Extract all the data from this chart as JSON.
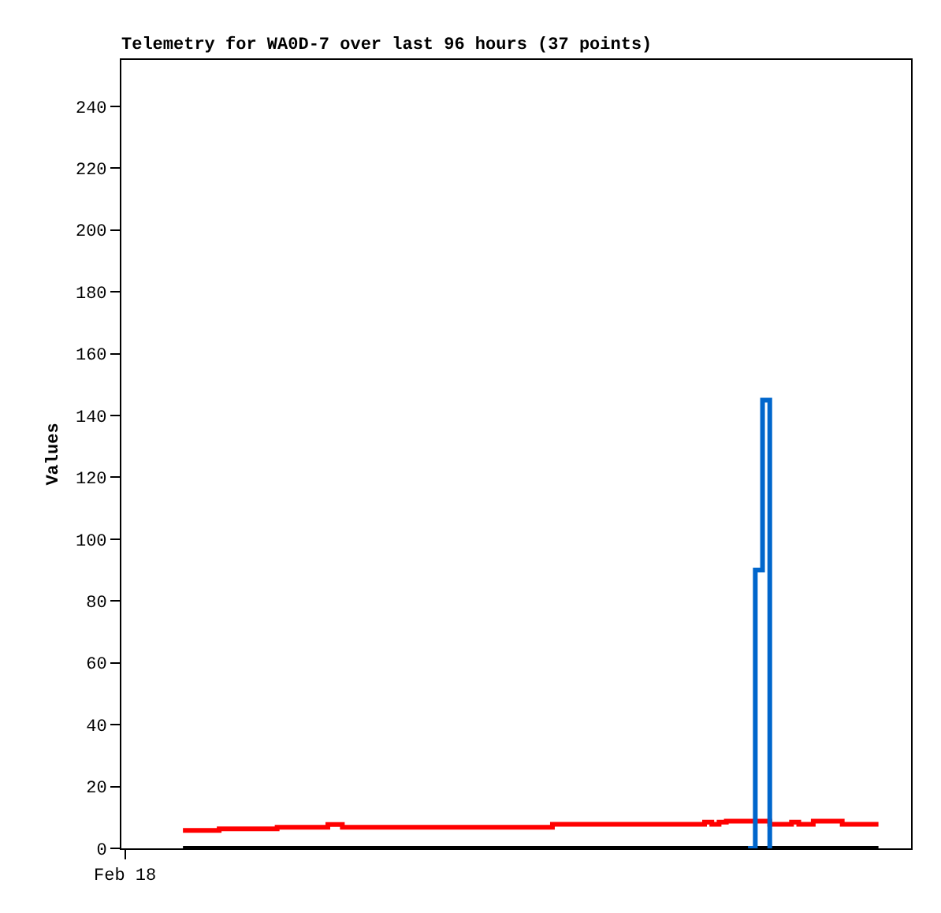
{
  "chart_data": {
    "type": "step",
    "title": "Telemetry for WA0D-7 over last 96 hours (37 points)",
    "ylabel": "Values",
    "categories": [
      "Feb 18",
      null,
      null,
      null,
      null,
      null,
      null,
      null,
      null,
      null,
      null,
      null,
      null,
      null,
      null,
      null,
      null,
      null,
      null,
      null,
      null,
      null,
      null,
      null,
      null,
      null,
      null,
      null,
      null,
      null,
      null,
      null,
      null,
      null,
      null,
      null,
      null,
      null,
      null,
      null,
      null,
      null,
      null,
      null,
      null,
      null,
      null,
      null,
      null,
      null,
      null,
      null,
      null,
      null,
      null,
      null,
      null,
      null,
      null,
      null,
      null,
      null,
      null,
      null,
      null,
      null,
      null,
      null,
      null,
      null,
      null,
      null,
      null,
      null,
      null,
      null,
      null,
      null,
      null,
      null,
      null,
      null,
      null,
      null,
      null,
      null,
      null,
      null,
      null,
      null,
      null,
      null,
      null,
      null,
      null,
      null,
      null,
      null,
      null,
      null,
      null,
      null,
      null,
      null,
      null,
      null,
      null,
      null,
      null
    ],
    "ylim": [
      0,
      255
    ],
    "yticks": [
      0,
      20,
      40,
      60,
      80,
      100,
      120,
      140,
      160,
      180,
      200,
      220,
      240
    ],
    "series": [
      {
        "color": "#000000",
        "values": [
          null,
          null,
          null,
          null,
          null,
          null,
          null,
          null,
          0,
          0,
          0,
          0,
          0,
          0,
          0,
          0,
          0,
          0,
          0,
          0,
          0,
          0,
          0,
          0,
          0,
          0,
          0,
          0,
          0,
          0,
          0,
          0,
          0,
          0,
          0,
          0,
          0,
          0,
          0,
          0,
          0,
          0,
          0,
          0,
          0,
          0,
          0,
          0,
          0,
          0,
          0,
          0,
          0,
          0,
          0,
          0,
          0,
          0,
          0,
          0,
          0,
          0,
          0,
          0,
          0,
          0,
          0,
          0,
          0,
          0,
          0,
          0,
          0,
          0,
          0,
          0,
          0,
          0,
          0,
          0,
          0,
          0,
          0,
          0,
          0,
          0,
          0,
          0,
          0,
          0,
          0,
          0,
          0,
          0,
          0,
          0,
          0,
          0,
          0,
          0,
          0,
          0,
          0,
          0,
          0,
          null,
          null,
          null,
          null
        ]
      },
      {
        "color": "#ff0000",
        "values": [
          null,
          null,
          null,
          null,
          null,
          null,
          null,
          null,
          5.8,
          5.8,
          5.8,
          5.8,
          5.8,
          6.3,
          6.3,
          6.3,
          6.3,
          6.3,
          6.3,
          6.3,
          6.3,
          6.8,
          6.8,
          6.8,
          6.8,
          6.8,
          6.8,
          6.8,
          7.7,
          7.7,
          6.8,
          6.8,
          6.8,
          6.8,
          6.8,
          6.8,
          6.8,
          6.8,
          6.8,
          6.8,
          6.8,
          6.8,
          6.8,
          6.8,
          6.8,
          6.8,
          6.8,
          6.8,
          6.8,
          6.8,
          6.8,
          6.8,
          6.8,
          6.8,
          6.8,
          6.8,
          6.8,
          6.8,
          6.8,
          7.8,
          7.8,
          7.8,
          7.8,
          7.8,
          7.8,
          7.8,
          7.8,
          7.8,
          7.8,
          7.8,
          7.8,
          7.8,
          7.8,
          7.8,
          7.8,
          7.8,
          7.8,
          7.8,
          7.8,
          7.8,
          8.5,
          7.8,
          8.5,
          8.8,
          8.8,
          8.8,
          8.8,
          8.8,
          8.8,
          7.8,
          7.8,
          7.8,
          8.5,
          7.8,
          7.8,
          8.8,
          8.8,
          8.8,
          8.8,
          7.8,
          7.8,
          7.8,
          7.8,
          7.8,
          7.8,
          null,
          null,
          null,
          null
        ]
      },
      {
        "color": "#0066cc",
        "values": [
          null,
          null,
          null,
          null,
          null,
          null,
          null,
          null,
          null,
          null,
          null,
          null,
          null,
          null,
          null,
          null,
          null,
          null,
          null,
          null,
          null,
          null,
          null,
          null,
          null,
          null,
          null,
          null,
          null,
          null,
          null,
          null,
          null,
          null,
          null,
          null,
          null,
          null,
          null,
          null,
          null,
          null,
          null,
          null,
          null,
          null,
          null,
          null,
          null,
          null,
          null,
          null,
          null,
          null,
          null,
          null,
          null,
          null,
          null,
          null,
          null,
          null,
          null,
          null,
          null,
          null,
          null,
          null,
          null,
          null,
          null,
          null,
          null,
          null,
          null,
          null,
          null,
          null,
          null,
          null,
          null,
          null,
          null,
          null,
          null,
          null,
          0,
          90,
          145,
          0,
          null,
          null,
          null,
          null,
          null,
          null,
          null,
          null,
          null,
          null,
          null,
          null,
          null,
          null,
          null,
          null,
          null,
          null,
          null
        ]
      }
    ]
  }
}
